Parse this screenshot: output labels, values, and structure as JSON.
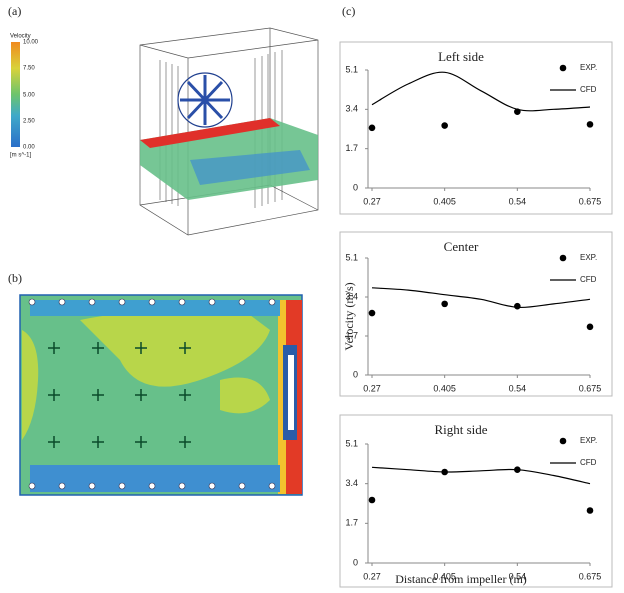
{
  "panels": {
    "a": "(a)",
    "b": "(b)",
    "c": "(c)"
  },
  "colorbar": {
    "title": "Velocity",
    "labels": [
      "10.00",
      "7.50",
      "5.00",
      "2.50",
      "0.00"
    ],
    "unit": "[m s^-1]"
  },
  "chart_data": [
    {
      "type": "line",
      "title": "Left side",
      "ylim": [
        0,
        5.1
      ],
      "yticks": [
        0,
        1.7,
        3.4,
        5.1
      ],
      "xlim": [
        0.27,
        0.675
      ],
      "xticks": [
        0.27,
        0.405,
        0.54,
        0.675
      ],
      "series": [
        {
          "name": "EXP.",
          "type": "scatter",
          "color": "#000000",
          "x": [
            0.27,
            0.405,
            0.54,
            0.675
          ],
          "values": [
            2.6,
            2.7,
            3.3,
            2.75
          ]
        },
        {
          "name": "CFD",
          "type": "line",
          "color": "#000000",
          "x": [
            0.27,
            0.3375,
            0.405,
            0.4725,
            0.54,
            0.6075,
            0.675
          ],
          "values": [
            3.6,
            4.5,
            5.0,
            4.2,
            3.4,
            3.4,
            3.5
          ]
        }
      ]
    },
    {
      "type": "line",
      "title": "Center",
      "y_label": "Velocity (m/s)",
      "ylim": [
        0,
        5.1
      ],
      "yticks": [
        0,
        1.7,
        3.4,
        5.1
      ],
      "xlim": [
        0.27,
        0.675
      ],
      "xticks": [
        0.27,
        0.405,
        0.54,
        0.675
      ],
      "series": [
        {
          "name": "EXP.",
          "type": "scatter",
          "color": "#000000",
          "x": [
            0.27,
            0.405,
            0.54,
            0.675
          ],
          "values": [
            2.7,
            3.1,
            3.0,
            2.1
          ]
        },
        {
          "name": "CFD",
          "type": "line",
          "color": "#000000",
          "x": [
            0.27,
            0.3375,
            0.405,
            0.4725,
            0.54,
            0.6075,
            0.675
          ],
          "values": [
            3.8,
            3.7,
            3.5,
            3.3,
            2.95,
            3.1,
            3.3
          ]
        }
      ]
    },
    {
      "type": "line",
      "title": "Right side",
      "x_label": "Distance from impeller (m)",
      "ylim": [
        0,
        5.1
      ],
      "yticks": [
        0,
        1.7,
        3.4,
        5.1
      ],
      "xlim": [
        0.27,
        0.675
      ],
      "xticks": [
        0.27,
        0.405,
        0.54,
        0.675
      ],
      "series": [
        {
          "name": "EXP.",
          "type": "scatter",
          "color": "#000000",
          "x": [
            0.27,
            0.405,
            0.54,
            0.675
          ],
          "values": [
            2.7,
            3.9,
            4.0,
            2.25
          ]
        },
        {
          "name": "CFD",
          "type": "line",
          "color": "#000000",
          "x": [
            0.27,
            0.3375,
            0.405,
            0.4725,
            0.54,
            0.6075,
            0.675
          ],
          "values": [
            4.1,
            4.0,
            3.9,
            3.95,
            4.0,
            3.75,
            3.4
          ]
        }
      ]
    }
  ]
}
